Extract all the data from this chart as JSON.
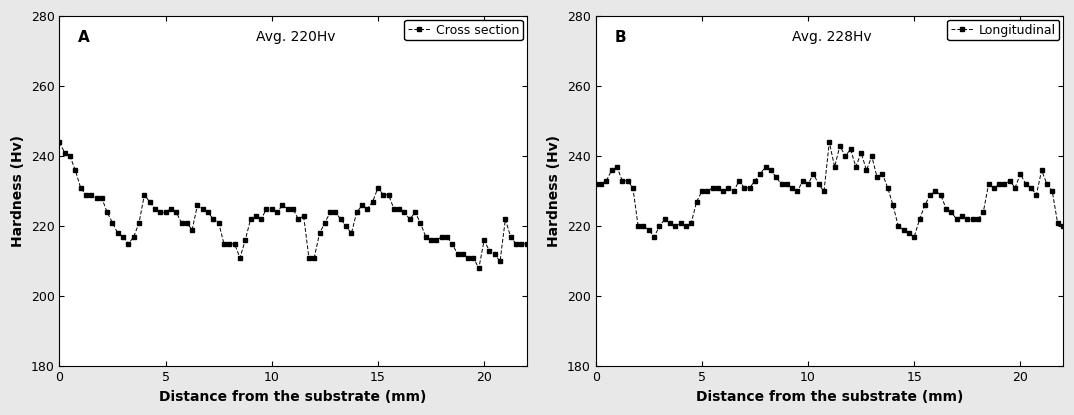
{
  "panel_A": {
    "label": "A",
    "avg_text": "Avg. 220Hv",
    "legend_label": "Cross section",
    "x": [
      0.0,
      0.25,
      0.5,
      0.75,
      1.0,
      1.25,
      1.5,
      1.75,
      2.0,
      2.25,
      2.5,
      2.75,
      3.0,
      3.25,
      3.5,
      3.75,
      4.0,
      4.25,
      4.5,
      4.75,
      5.0,
      5.25,
      5.5,
      5.75,
      6.0,
      6.25,
      6.5,
      6.75,
      7.0,
      7.25,
      7.5,
      7.75,
      8.0,
      8.25,
      8.5,
      8.75,
      9.0,
      9.25,
      9.5,
      9.75,
      10.0,
      10.25,
      10.5,
      10.75,
      11.0,
      11.25,
      11.5,
      11.75,
      12.0,
      12.25,
      12.5,
      12.75,
      13.0,
      13.25,
      13.5,
      13.75,
      14.0,
      14.25,
      14.5,
      14.75,
      15.0,
      15.25,
      15.5,
      15.75,
      16.0,
      16.25,
      16.5,
      16.75,
      17.0,
      17.25,
      17.5,
      17.75,
      18.0,
      18.25,
      18.5,
      18.75,
      19.0,
      19.25,
      19.5,
      19.75,
      20.0,
      20.25,
      20.5,
      20.75,
      21.0,
      21.25,
      21.5,
      21.75,
      22.0
    ],
    "y": [
      244,
      241,
      240,
      236,
      231,
      229,
      229,
      228,
      228,
      224,
      221,
      218,
      217,
      215,
      217,
      221,
      229,
      227,
      225,
      224,
      224,
      225,
      224,
      221,
      221,
      219,
      226,
      225,
      224,
      222,
      221,
      215,
      215,
      215,
      211,
      216,
      222,
      223,
      222,
      225,
      225,
      224,
      226,
      225,
      225,
      222,
      223,
      211,
      211,
      218,
      221,
      224,
      224,
      222,
      220,
      218,
      224,
      226,
      225,
      227,
      231,
      229,
      229,
      225,
      225,
      224,
      222,
      224,
      221,
      217,
      216,
      216,
      217,
      217,
      215,
      212,
      212,
      211,
      211,
      208,
      216,
      213,
      212,
      210,
      222,
      217,
      215,
      215,
      215
    ],
    "xlim": [
      0,
      22
    ],
    "ylim": [
      180,
      280
    ],
    "yticks": [
      180,
      200,
      220,
      240,
      260,
      280
    ],
    "xticks": [
      0,
      5,
      10,
      15,
      20
    ],
    "xlabel": "Distance from the substrate (mm)",
    "ylabel": "Hardness (Hv)"
  },
  "panel_B": {
    "label": "B",
    "avg_text": "Avg. 228Hv",
    "legend_label": "Longitudinal",
    "x": [
      0.0,
      0.25,
      0.5,
      0.75,
      1.0,
      1.25,
      1.5,
      1.75,
      2.0,
      2.25,
      2.5,
      2.75,
      3.0,
      3.25,
      3.5,
      3.75,
      4.0,
      4.25,
      4.5,
      4.75,
      5.0,
      5.25,
      5.5,
      5.75,
      6.0,
      6.25,
      6.5,
      6.75,
      7.0,
      7.25,
      7.5,
      7.75,
      8.0,
      8.25,
      8.5,
      8.75,
      9.0,
      9.25,
      9.5,
      9.75,
      10.0,
      10.25,
      10.5,
      10.75,
      11.0,
      11.25,
      11.5,
      11.75,
      12.0,
      12.25,
      12.5,
      12.75,
      13.0,
      13.25,
      13.5,
      13.75,
      14.0,
      14.25,
      14.5,
      14.75,
      15.0,
      15.25,
      15.5,
      15.75,
      16.0,
      16.25,
      16.5,
      16.75,
      17.0,
      17.25,
      17.5,
      17.75,
      18.0,
      18.25,
      18.5,
      18.75,
      19.0,
      19.25,
      19.5,
      19.75,
      20.0,
      20.25,
      20.5,
      20.75,
      21.0,
      21.25,
      21.5,
      21.75,
      22.0
    ],
    "y": [
      232,
      232,
      233,
      236,
      237,
      233,
      233,
      231,
      220,
      220,
      219,
      217,
      220,
      222,
      221,
      220,
      221,
      220,
      221,
      227,
      230,
      230,
      231,
      231,
      230,
      231,
      230,
      233,
      231,
      231,
      233,
      235,
      237,
      236,
      234,
      232,
      232,
      231,
      230,
      233,
      232,
      235,
      232,
      230,
      244,
      237,
      243,
      240,
      242,
      237,
      241,
      236,
      240,
      234,
      235,
      231,
      226,
      220,
      219,
      218,
      217,
      222,
      226,
      229,
      230,
      229,
      225,
      224,
      222,
      223,
      222,
      222,
      222,
      224,
      232,
      231,
      232,
      232,
      233,
      231,
      235,
      232,
      231,
      229,
      236,
      232,
      230,
      221,
      220
    ],
    "xlim": [
      0,
      22
    ],
    "ylim": [
      180,
      280
    ],
    "yticks": [
      180,
      200,
      220,
      240,
      260,
      280
    ],
    "xticks": [
      0,
      5,
      10,
      15,
      20
    ],
    "xlabel": "Distance from the substrate (mm)",
    "ylabel": "Hardness (Hv)"
  },
  "line_color": "#000000",
  "marker": "s",
  "marker_size": 3.5,
  "line_width": 0.7,
  "fig_width": 10.74,
  "fig_height": 4.15,
  "bg_color": "#e8e8e8"
}
